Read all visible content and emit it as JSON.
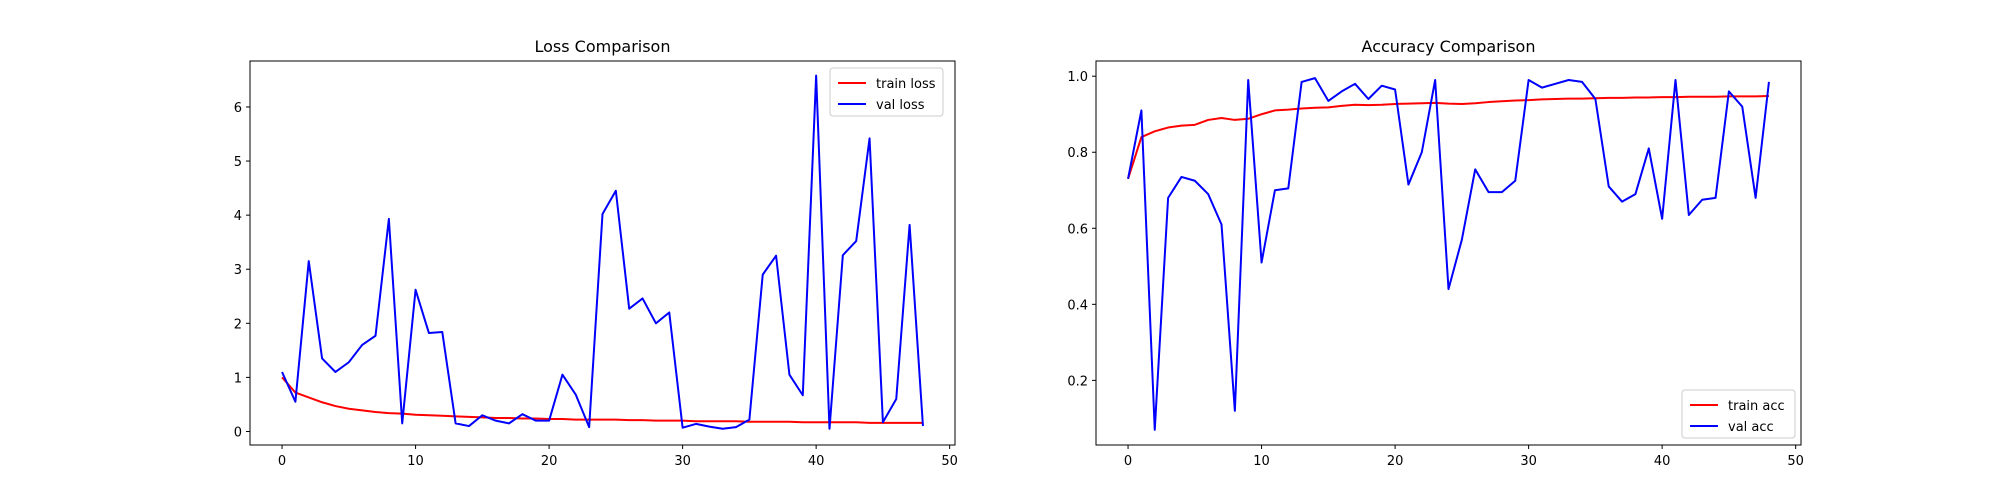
{
  "chart_data": [
    {
      "type": "line",
      "title": "Loss Comparison",
      "xlabel": "",
      "ylabel": "",
      "xlim": [
        -2.4,
        50.4
      ],
      "ylim": [
        -0.25,
        6.85
      ],
      "xticks": [
        0,
        10,
        20,
        30,
        40,
        50
      ],
      "yticks": [
        0,
        1,
        2,
        3,
        4,
        5,
        6
      ],
      "grid": false,
      "legend_position": "upper right",
      "x": [
        0,
        1,
        2,
        3,
        4,
        5,
        6,
        7,
        8,
        9,
        10,
        11,
        12,
        13,
        14,
        15,
        16,
        17,
        18,
        19,
        20,
        21,
        22,
        23,
        24,
        25,
        26,
        27,
        28,
        29,
        30,
        31,
        32,
        33,
        34,
        35,
        36,
        37,
        38,
        39,
        40,
        41,
        42,
        43,
        44,
        45,
        46,
        47,
        48
      ],
      "series": [
        {
          "name": "train loss",
          "color": "#ff0000",
          "values": [
            1.0,
            0.72,
            0.63,
            0.54,
            0.47,
            0.42,
            0.39,
            0.36,
            0.34,
            0.33,
            0.31,
            0.3,
            0.29,
            0.28,
            0.27,
            0.26,
            0.25,
            0.25,
            0.24,
            0.24,
            0.23,
            0.23,
            0.22,
            0.22,
            0.22,
            0.22,
            0.21,
            0.21,
            0.2,
            0.2,
            0.2,
            0.19,
            0.19,
            0.19,
            0.19,
            0.18,
            0.18,
            0.18,
            0.18,
            0.17,
            0.17,
            0.17,
            0.17,
            0.17,
            0.16,
            0.16,
            0.16,
            0.16,
            0.16
          ]
        },
        {
          "name": "val loss",
          "color": "#0000ff",
          "values": [
            1.1,
            0.55,
            3.15,
            1.35,
            1.1,
            1.28,
            1.6,
            1.77,
            3.93,
            0.15,
            2.62,
            1.82,
            1.84,
            0.15,
            0.1,
            0.3,
            0.2,
            0.15,
            0.32,
            0.2,
            0.2,
            1.05,
            0.68,
            0.08,
            4.02,
            4.45,
            2.27,
            2.46,
            2.0,
            2.2,
            0.07,
            0.14,
            0.09,
            0.05,
            0.08,
            0.22,
            2.9,
            3.25,
            1.05,
            0.67,
            6.58,
            0.05,
            3.26,
            3.52,
            5.42,
            0.17,
            0.6,
            3.82,
            0.1
          ]
        }
      ]
    },
    {
      "type": "line",
      "title": "Accuracy Comparison",
      "xlabel": "",
      "ylabel": "",
      "xlim": [
        -2.4,
        50.4
      ],
      "ylim": [
        0.03,
        1.04
      ],
      "xticks": [
        0,
        10,
        20,
        30,
        40,
        50
      ],
      "yticks": [
        0.2,
        0.4,
        0.6,
        0.8,
        1.0
      ],
      "ytick_labels": [
        "0.2",
        "0.4",
        "0.6",
        "0.8",
        "1.0"
      ],
      "grid": false,
      "legend_position": "lower right",
      "x": [
        0,
        1,
        2,
        3,
        4,
        5,
        6,
        7,
        8,
        9,
        10,
        11,
        12,
        13,
        14,
        15,
        16,
        17,
        18,
        19,
        20,
        21,
        22,
        23,
        24,
        25,
        26,
        27,
        28,
        29,
        30,
        31,
        32,
        33,
        34,
        35,
        36,
        37,
        38,
        39,
        40,
        41,
        42,
        43,
        44,
        45,
        46,
        47,
        48
      ],
      "series": [
        {
          "name": "train acc",
          "color": "#ff0000",
          "values": [
            0.73,
            0.84,
            0.855,
            0.865,
            0.87,
            0.872,
            0.885,
            0.89,
            0.885,
            0.888,
            0.9,
            0.91,
            0.912,
            0.915,
            0.917,
            0.918,
            0.922,
            0.925,
            0.924,
            0.925,
            0.927,
            0.928,
            0.929,
            0.93,
            0.928,
            0.927,
            0.929,
            0.932,
            0.934,
            0.936,
            0.937,
            0.939,
            0.94,
            0.941,
            0.941,
            0.942,
            0.943,
            0.943,
            0.944,
            0.944,
            0.945,
            0.945,
            0.946,
            0.946,
            0.946,
            0.947,
            0.947,
            0.947,
            0.948
          ]
        },
        {
          "name": "val acc",
          "color": "#0000ff",
          "values": [
            0.73,
            0.91,
            0.07,
            0.68,
            0.735,
            0.725,
            0.69,
            0.61,
            0.12,
            0.99,
            0.51,
            0.7,
            0.705,
            0.985,
            0.995,
            0.935,
            0.96,
            0.98,
            0.94,
            0.975,
            0.965,
            0.715,
            0.8,
            0.99,
            0.44,
            0.57,
            0.755,
            0.695,
            0.695,
            0.725,
            0.99,
            0.97,
            0.98,
            0.99,
            0.985,
            0.94,
            0.71,
            0.67,
            0.69,
            0.81,
            0.625,
            0.99,
            0.635,
            0.675,
            0.68,
            0.96,
            0.92,
            0.68,
            0.985
          ]
        }
      ]
    }
  ]
}
